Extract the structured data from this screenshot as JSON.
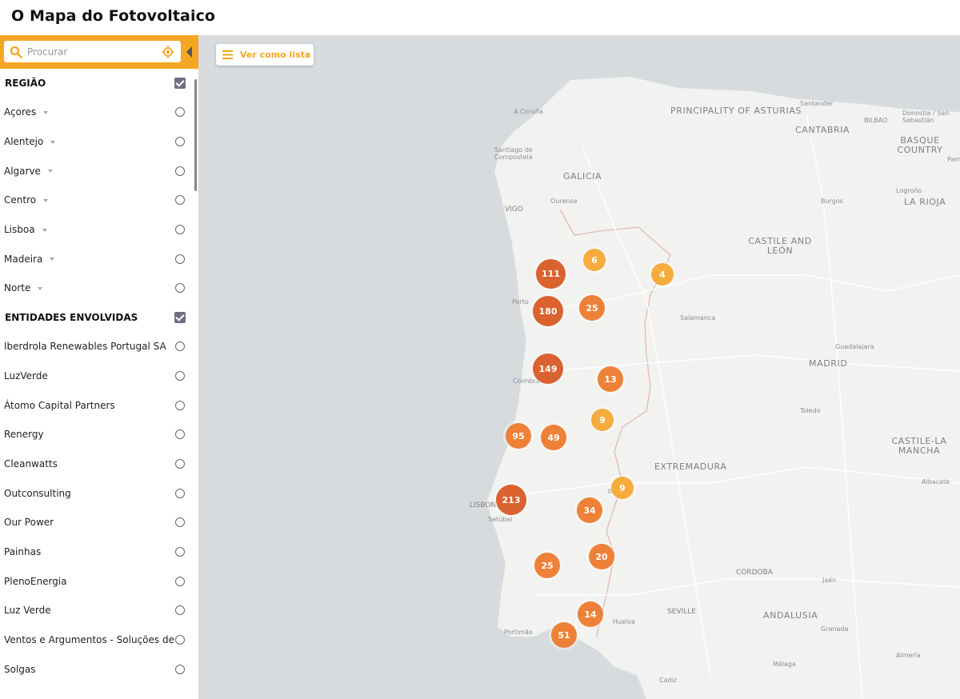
{
  "app": {
    "title": "O Mapa do Fotovoltaico"
  },
  "search": {
    "placeholder": "Procurar"
  },
  "icons": {
    "search": "search-icon",
    "locate": "locate-icon",
    "collapse": "collapse-arrow-icon",
    "list": "list-icon"
  },
  "colors": {
    "accent": "#f5a623",
    "checkbox": "#6f6f84",
    "cluster_small": "#f5ac3d",
    "cluster_medium": "#ee8138",
    "cluster_large": "#d9622f"
  },
  "regiao": {
    "title": "REGIÃO",
    "items": [
      "Açores",
      "Alentejo",
      "Algarve",
      "Centro",
      "Lisboa",
      "Madeira",
      "Norte"
    ]
  },
  "entidades": {
    "title": "ENTIDADES ENVOLVIDAS",
    "items": [
      "Iberdrola Renewables Portugal SA",
      "LuzVerde",
      "Átomo Capital Partners",
      "Renergy",
      "Cleanwatts",
      "Outconsulting",
      "Our Power",
      "Painhas",
      "PlenoEnergia",
      "Luz Verde",
      "Ventos e Argumentos - Soluções de",
      "Solgas"
    ]
  },
  "map": {
    "list_button": "Ver como lista",
    "clusters": [
      "111",
      "6",
      "4",
      "180",
      "25",
      "149",
      "13",
      "9",
      "95",
      "49",
      "9",
      "213",
      "34",
      "20",
      "25",
      "14",
      "51"
    ],
    "labels": [
      "A Coruña",
      "PRINCIPALITY OF ASTURIAS",
      "Santander",
      "CANTABRIA",
      "BILBAO",
      "Donostia / San Sebastián",
      "BASQUE COUNTRY",
      "Pamp",
      "Santiago de Compostela",
      "GALICIA",
      "Ourense",
      "VIGO",
      "Burgos",
      "Logroño",
      "LA RIOJA",
      "CASTILE AND LEÓN",
      "Porto",
      "Salamanca",
      "Guadalajara",
      "MADRID",
      "Coimbra",
      "Toledo",
      "CASTILE-LA MANCHA",
      "EXTREMADURA",
      "Albacete",
      "Badajoz",
      "LISBON",
      "Setúbal",
      "CÓRDOBA",
      "Jaén",
      "SEVILLE",
      "ANDALUSIA",
      "Huelva",
      "Granada",
      "Portimão",
      "Almería",
      "Málaga",
      "Cadiz"
    ]
  }
}
